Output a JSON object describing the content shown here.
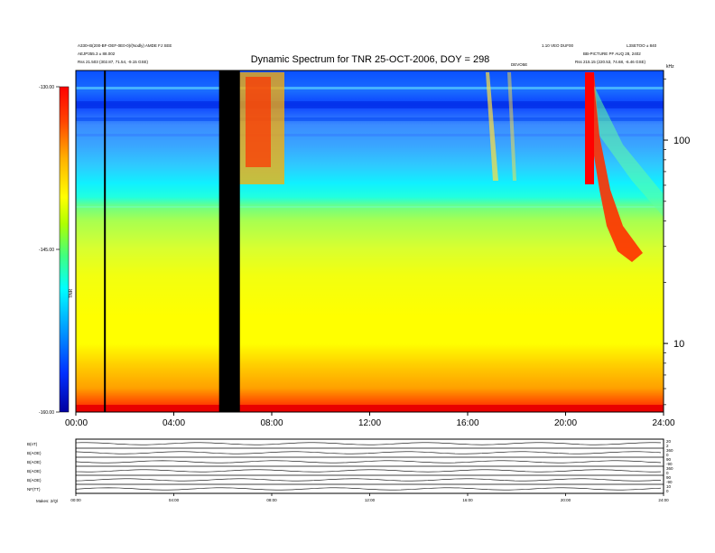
{
  "chart_data": {
    "type": "heatmap",
    "title": "Dynamic Spectrum for TNR 25-OCT-2006, DOY = 298",
    "header_left": [
      "A330+B(200-BF-OEF-0E0-0)/(Nodly)  AMDE FJ SEE",
      "AEJP355.3 ± 88.002",
      "Rss   21.503 (302.87, 71.54, -9.15 GSE)"
    ],
    "header_right": [
      "1.10 VEO DUF00  ",
      "L3SETOO ± 840",
      "BB-PICTURE PF AUQ 28, 2402",
      "Rss   215.15 (220.53, 74.68, -6.46 GSE)"
    ],
    "header_center_small": "DEVO5E",
    "x_tick_labels": [
      "00:00",
      "04:00",
      "08:00",
      "12:00",
      "16:00",
      "20:00",
      "24:00"
    ],
    "x_ticks_hours": [
      0,
      4,
      8,
      12,
      16,
      20,
      24
    ],
    "xlim_hours": [
      0,
      24
    ],
    "y_unit": "kHz",
    "y_scale": "log",
    "ylim_khz": [
      4.6,
      220
    ],
    "y_tick_labels": [
      "100",
      "10"
    ],
    "y_ticks_khz": [
      100,
      10
    ],
    "colorbar": {
      "tick_labels": [
        "-130.00",
        "-145.00",
        "-160.00"
      ],
      "tick_values": [
        -130,
        -145,
        -160
      ],
      "range": [
        -160,
        -130
      ],
      "side_label": "TNR",
      "colors": [
        "#0000c0",
        "#0040ff",
        "#00a0ff",
        "#00ffff",
        "#40ff80",
        "#c0ff00",
        "#ffff00",
        "#ffa000",
        "#ff3000",
        "#ff0000"
      ]
    },
    "data_gaps_hours": [
      [
        1.15,
        1.22
      ],
      [
        5.85,
        6.7
      ]
    ],
    "panels": [
      {
        "label": "B(nT)",
        "right_ticks": [
          "20",
          "2"
        ]
      },
      {
        "label": "B(AOE)",
        "right_ticks": [
          "360",
          "0"
        ]
      },
      {
        "label": "B(AOE)",
        "right_ticks": [
          "90",
          "-90"
        ]
      },
      {
        "label": "B(AOE)",
        "right_ticks": [
          "360",
          "0"
        ]
      },
      {
        "label": "B(AOE)",
        "right_ticks": [
          "90",
          "-90"
        ]
      },
      {
        "label": "NF(TT)",
        "right_ticks": [
          "10",
          "0"
        ]
      }
    ],
    "bottom_tick_labels": [
      "00:00",
      "04:00",
      "08:00",
      "12:00",
      "16:00",
      "20:00",
      "24:00"
    ],
    "bottom_left_note": "Makes: 2/Ql"
  }
}
